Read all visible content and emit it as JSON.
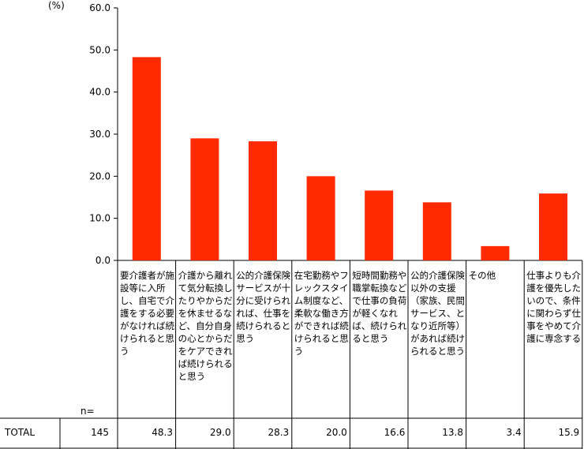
{
  "chart_data": {
    "type": "bar",
    "unit_label": "(%)",
    "yticks": [
      "0.0",
      "10.0",
      "20.0",
      "30.0",
      "40.0",
      "50.0",
      "60.0"
    ],
    "ylim": [
      0,
      60
    ],
    "categories": [
      "要介護者が施設等に入所し、自宅で介護をする必要がなければ続けられると思う",
      "介護から離れて気分転換したりやからだを休ませるなど、自分自身の心とからだをケアできれば続けられると思う",
      "公的介護保険サービスが十分に受けられれば、仕事を続けられると思う",
      "在宅勤務やフレックスタイム制度など、柔軟な働き方ができれば続けられると思う",
      "短時間勤務や職掌転換などで仕事の負荷が軽くなれば、続けられると思う",
      "公的介護保険以外の支援（家族、民間サービス、となり近所等）があれば続けられると思う",
      "その他",
      "仕事よりも介護を優先したいので、条件に関わらず仕事をやめて介護に専念する"
    ],
    "values": [
      48.3,
      29.0,
      28.3,
      20.0,
      16.6,
      13.8,
      3.4,
      15.9
    ],
    "value_labels": [
      "48.3",
      "29.0",
      "28.3",
      "20.0",
      "16.6",
      "13.8",
      "3.4",
      "15.9"
    ],
    "bar_color": "#ff2a00",
    "grid": false
  },
  "table": {
    "n_header": "n=",
    "row_label": "TOTAL",
    "n_value": "145"
  }
}
